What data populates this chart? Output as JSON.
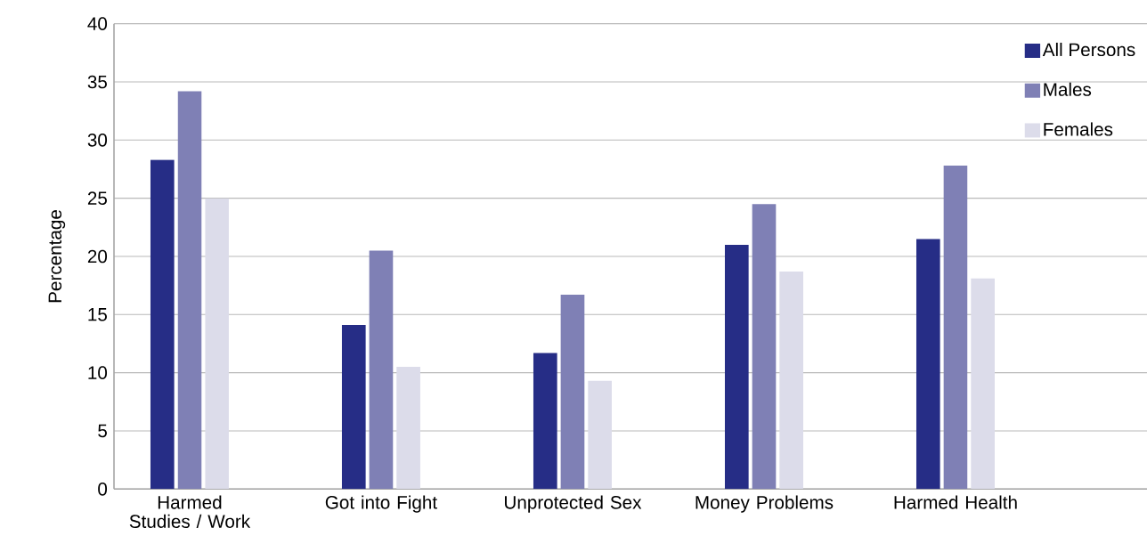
{
  "chart_data": {
    "type": "bar",
    "ylabel": "Percentage",
    "categories": [
      "Harmed Studies / Work",
      "Got into Fight",
      "Unprotected Sex",
      "Money Problems",
      "Harmed Health"
    ],
    "series": [
      {
        "name": "All Persons",
        "color": "#262d86",
        "values": [
          28.3,
          14.1,
          11.7,
          21.0,
          21.5
        ]
      },
      {
        "name": "Males",
        "color": "#7f80b5",
        "values": [
          34.2,
          20.5,
          16.7,
          24.5,
          27.8
        ]
      },
      {
        "name": "Females",
        "color": "#dcdcea",
        "values": [
          25.0,
          10.5,
          9.3,
          18.7,
          18.1
        ]
      }
    ],
    "ylim": [
      0,
      40
    ],
    "yticks": [
      0,
      5,
      10,
      15,
      20,
      25,
      30,
      35,
      40
    ],
    "grid": "y",
    "legend": "top right"
  }
}
